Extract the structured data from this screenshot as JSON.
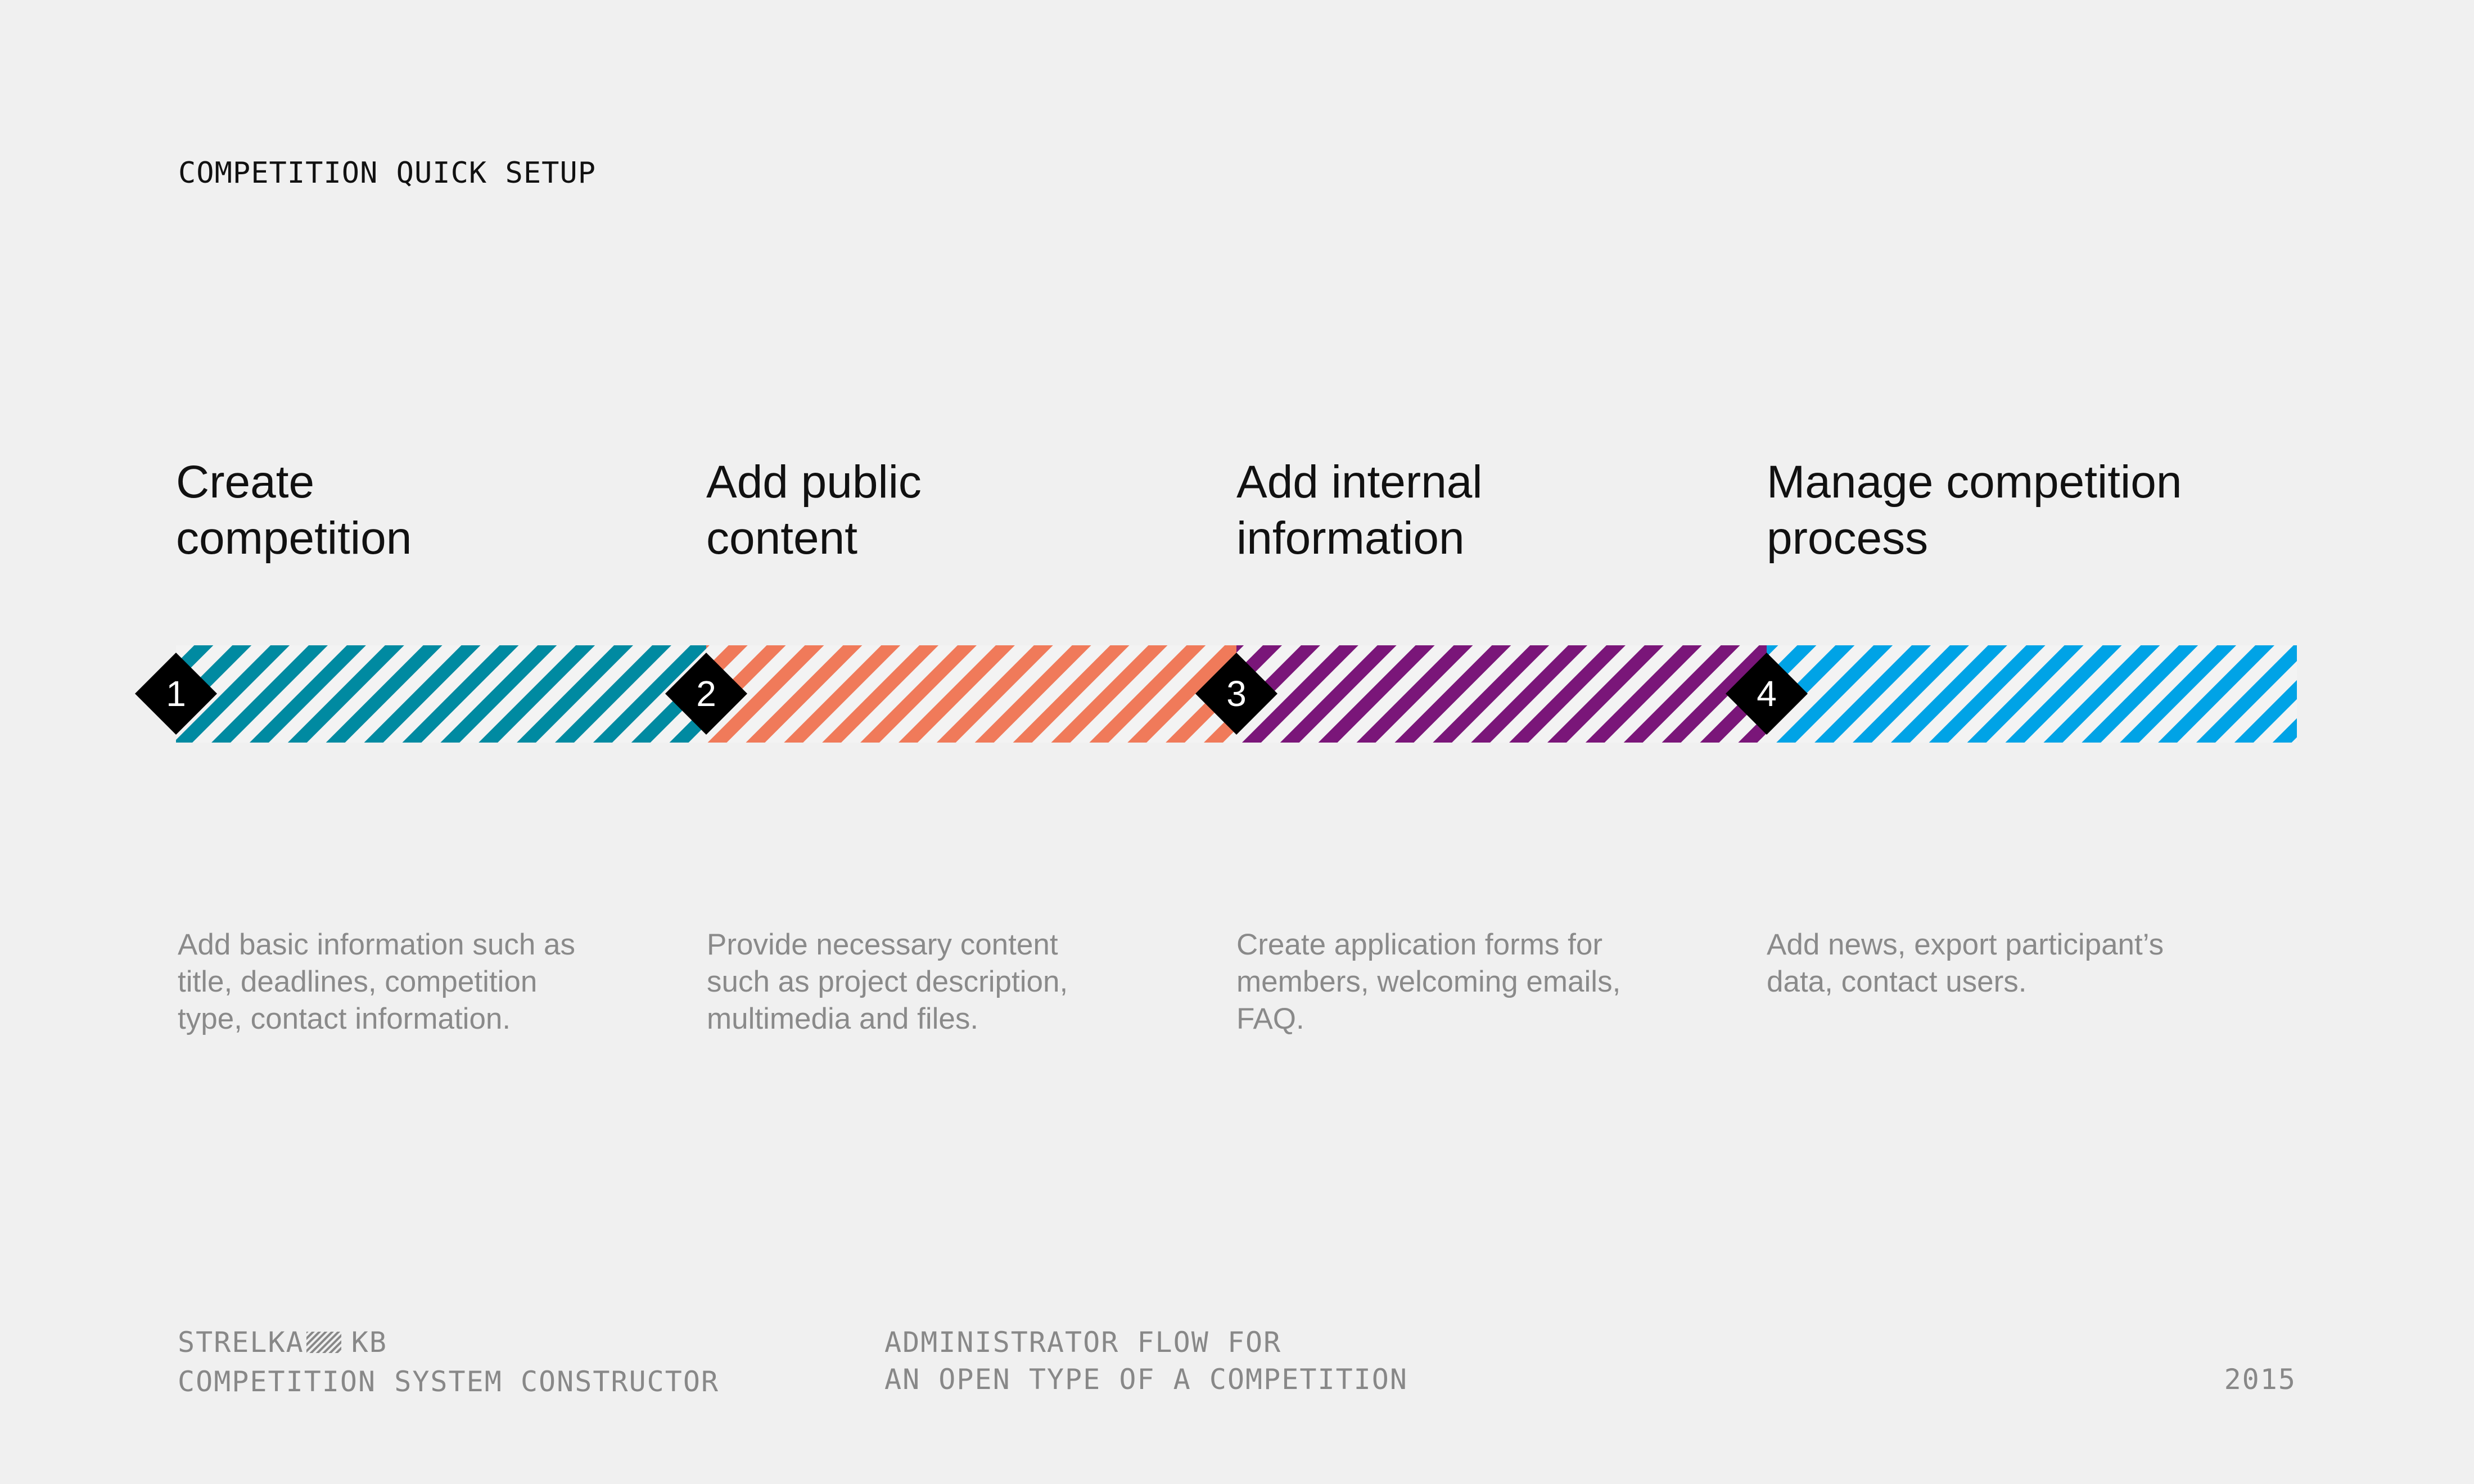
{
  "header": {
    "title": "COMPETITION QUICK SETUP"
  },
  "steps": [
    {
      "number": "1",
      "title_line1": "Create",
      "title_line2": "competition",
      "desc_lines": [
        "Add basic information such as",
        "title, deadlines, competition",
        "type, contact information."
      ],
      "color": "#008aa1"
    },
    {
      "number": "2",
      "title_line1": "Add public",
      "title_line2": "content",
      "desc_lines": [
        "Provide necessary content",
        "such as project description,",
        "multimedia and files."
      ],
      "color": "#f07a5a"
    },
    {
      "number": "3",
      "title_line1": "Add internal",
      "title_line2": "information",
      "desc_lines": [
        "Create application forms for",
        "members, welcoming emails,",
        "FAQ."
      ],
      "color": "#7a1679"
    },
    {
      "number": "4",
      "title_line1": "Manage competition",
      "title_line2": "process",
      "desc_lines": [
        "Add news, export participant’s",
        "data, contact users."
      ],
      "color": "#00a3e6"
    }
  ],
  "marker_style": {
    "diamond_color": "#000000",
    "number_color": "#ffffff"
  },
  "footer": {
    "brand_left": "STRELKA",
    "brand_right": "KB",
    "product": "COMPETITION SYSTEM CONSTRUCTOR",
    "flow_line1": "ADMINISTRATOR FLOW FOR",
    "flow_line2": "AN OPEN TYPE OF A COMPETITION",
    "year": "2015"
  }
}
